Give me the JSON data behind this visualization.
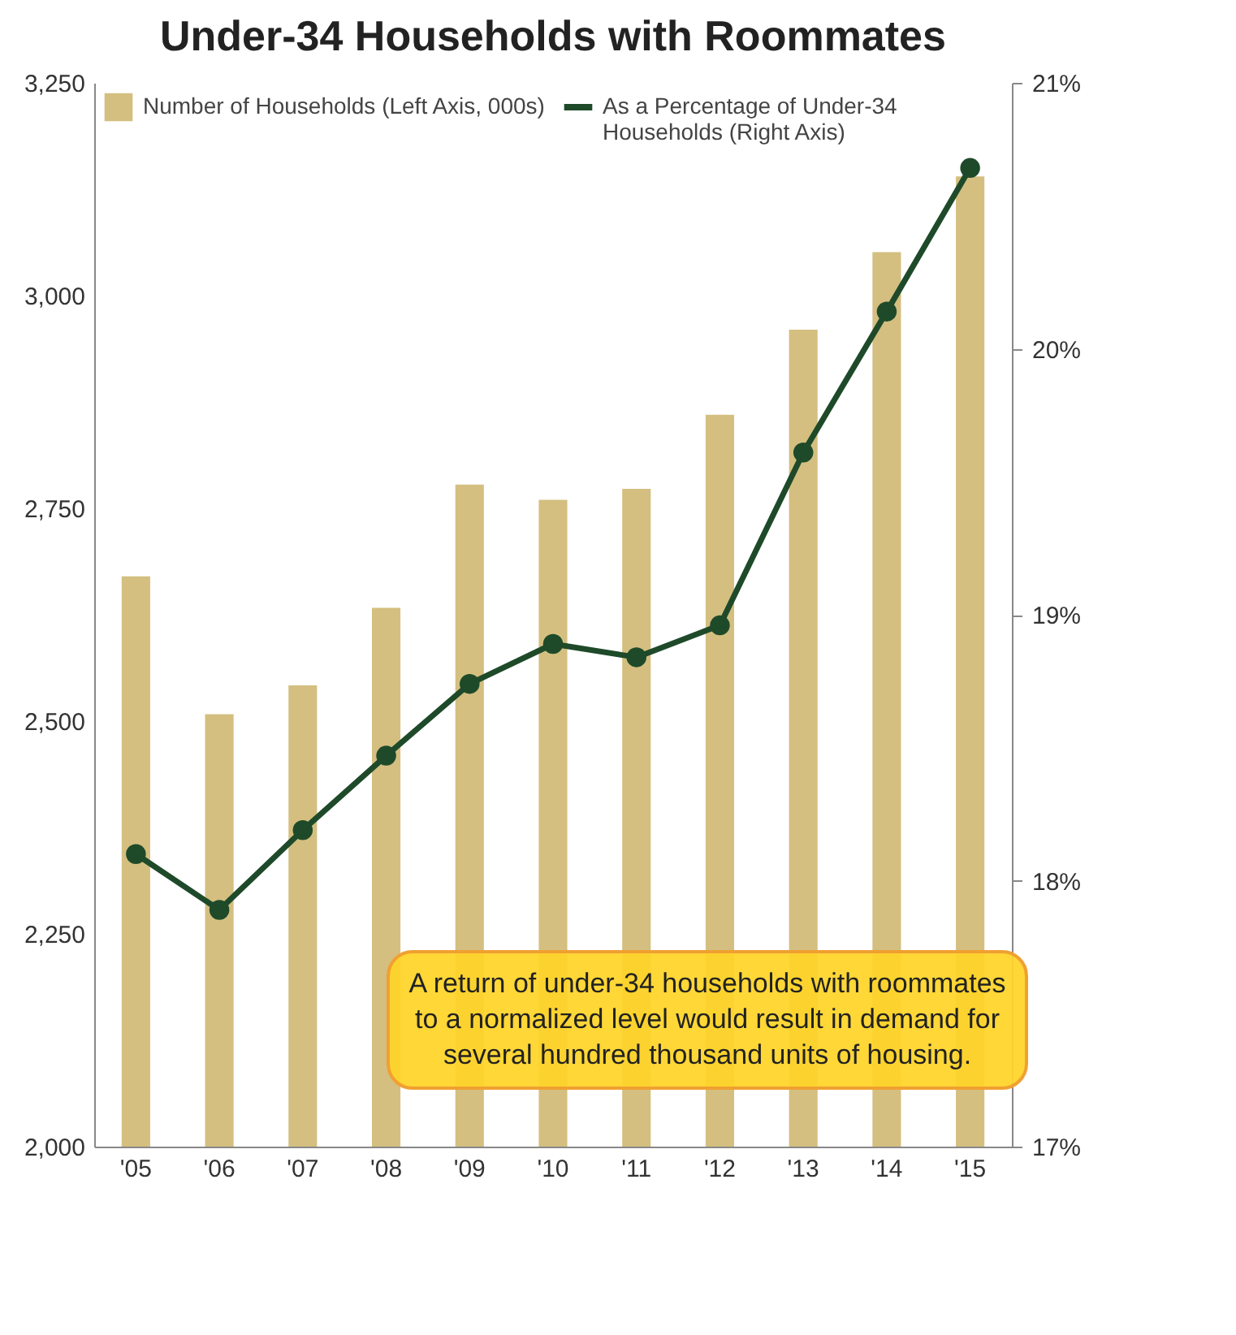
{
  "chart_data": {
    "type": "bar",
    "title": "Under-34 Households with Roommates",
    "categories": [
      "'05",
      "'06",
      "'07",
      "'08",
      "'09",
      "'10",
      "'11",
      "'12",
      "'13",
      "'14",
      "'15"
    ],
    "series": [
      {
        "name": "Number of Households (Left Axis, 000s)",
        "color": "#d4bf80",
        "values": [
          2670,
          2508,
          2542,
          2633,
          2778,
          2760,
          2773,
          2860,
          2960,
          3051,
          3140
        ]
      },
      {
        "name": "As a Percentage of Under-34 Households (Right Axis)",
        "type": "line",
        "axis": "y2",
        "color": "#1e4a2a",
        "marker": "circle",
        "line_style": "solid",
        "values": [
          18.1,
          17.89,
          18.19,
          18.47,
          18.74,
          18.89,
          18.84,
          18.96,
          19.61,
          20.14,
          20.68
        ]
      }
    ],
    "ylim": [
      2000,
      3250
    ],
    "yticks": [
      {
        "value": 2000,
        "label": "2,000"
      },
      {
        "value": 2250,
        "label": "2,250"
      },
      {
        "value": 2500,
        "label": "2,500"
      },
      {
        "value": 2750,
        "label": "2,750"
      },
      {
        "value": 3000,
        "label": "3,000"
      },
      {
        "value": 3250,
        "label": "3,250"
      }
    ],
    "y2lim": [
      17,
      21
    ],
    "y2ticks": [
      {
        "value": 17,
        "label": "17%"
      },
      {
        "value": 18,
        "label": "18%"
      },
      {
        "value": 19,
        "label": "19%"
      },
      {
        "value": 20,
        "label": "20%"
      },
      {
        "value": 21,
        "label": "21%"
      }
    ],
    "grid": false,
    "legend": "top left",
    "annotations": [
      "A return of under-34 households with roommates to a normalized level would result in demand for several hundred thousand units of housing."
    ]
  }
}
